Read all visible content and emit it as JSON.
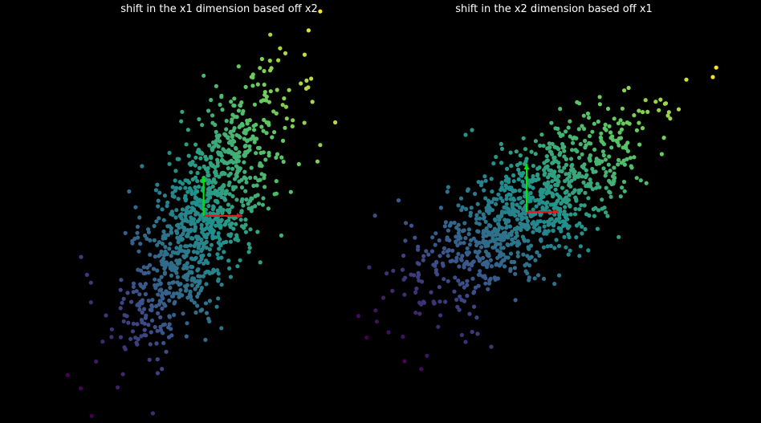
{
  "chart_data": [
    {
      "type": "scatter",
      "title": "shift in the x1 dimension based off x2",
      "xlabel": "",
      "ylabel": "",
      "grid": false,
      "axes_visible": false,
      "background": "#000000",
      "colormap": "viridis",
      "arrow_colors": {
        "x_arrow": "#e31a1c",
        "y_arrow": "#00e600"
      },
      "xlim": [
        -4.0,
        4.8
      ],
      "ylim": [
        -4.8,
        5.0
      ],
      "cluster": {
        "center": [
          0.0,
          0.0
        ],
        "std": [
          1.0,
          1.7
        ],
        "correlation": 0.75,
        "n_points": 1000
      },
      "arrows": [
        {
          "from": [
            0.0,
            0.0
          ],
          "to": [
            1.0,
            0.0
          ]
        },
        {
          "from": [
            0.0,
            0.0
          ],
          "to": [
            0.0,
            1.0
          ]
        }
      ],
      "outliers": [
        {
          "x": 3.0,
          "y": 5.2
        },
        {
          "x": 2.6,
          "y": 4.1
        },
        {
          "x": 2.8,
          "y": 2.9
        },
        {
          "x": 2.2,
          "y": 3.2
        },
        {
          "x": 2.0,
          "y": -0.5
        },
        {
          "x": -3.0,
          "y": -1.5
        },
        {
          "x": -2.9,
          "y": -1.7
        },
        {
          "x": -2.6,
          "y": -3.2
        }
      ]
    },
    {
      "type": "scatter",
      "title": "shift in the x2 dimension based off x1",
      "xlabel": "",
      "ylabel": "",
      "grid": false,
      "axes_visible": false,
      "background": "#000000",
      "colormap": "viridis",
      "arrow_colors": {
        "x_arrow": "#e31a1c",
        "y_arrow": "#00e600"
      },
      "xlim": [
        -4.5,
        6.2
      ],
      "ylim": [
        -4.0,
        4.0
      ],
      "cluster": {
        "center": [
          0.0,
          0.0
        ],
        "std": [
          1.8,
          1.0
        ],
        "correlation": 0.75,
        "n_points": 1000
      },
      "arrows": [
        {
          "from": [
            0.0,
            0.0
          ],
          "to": [
            1.0,
            0.0
          ]
        },
        {
          "from": [
            0.0,
            0.0
          ],
          "to": [
            0.0,
            1.0
          ]
        }
      ],
      "outliers": [
        {
          "x": 5.8,
          "y": 2.8
        },
        {
          "x": 4.4,
          "y": 2.0
        },
        {
          "x": -3.8,
          "y": -3.1
        },
        {
          "x": -4.3,
          "y": -2.5
        },
        {
          "x": -1.1,
          "y": -2.8
        },
        {
          "x": -1.9,
          "y": -2.7
        },
        {
          "x": -1.9,
          "y": 1.6
        },
        {
          "x": -1.7,
          "y": 1.7
        }
      ]
    }
  ]
}
